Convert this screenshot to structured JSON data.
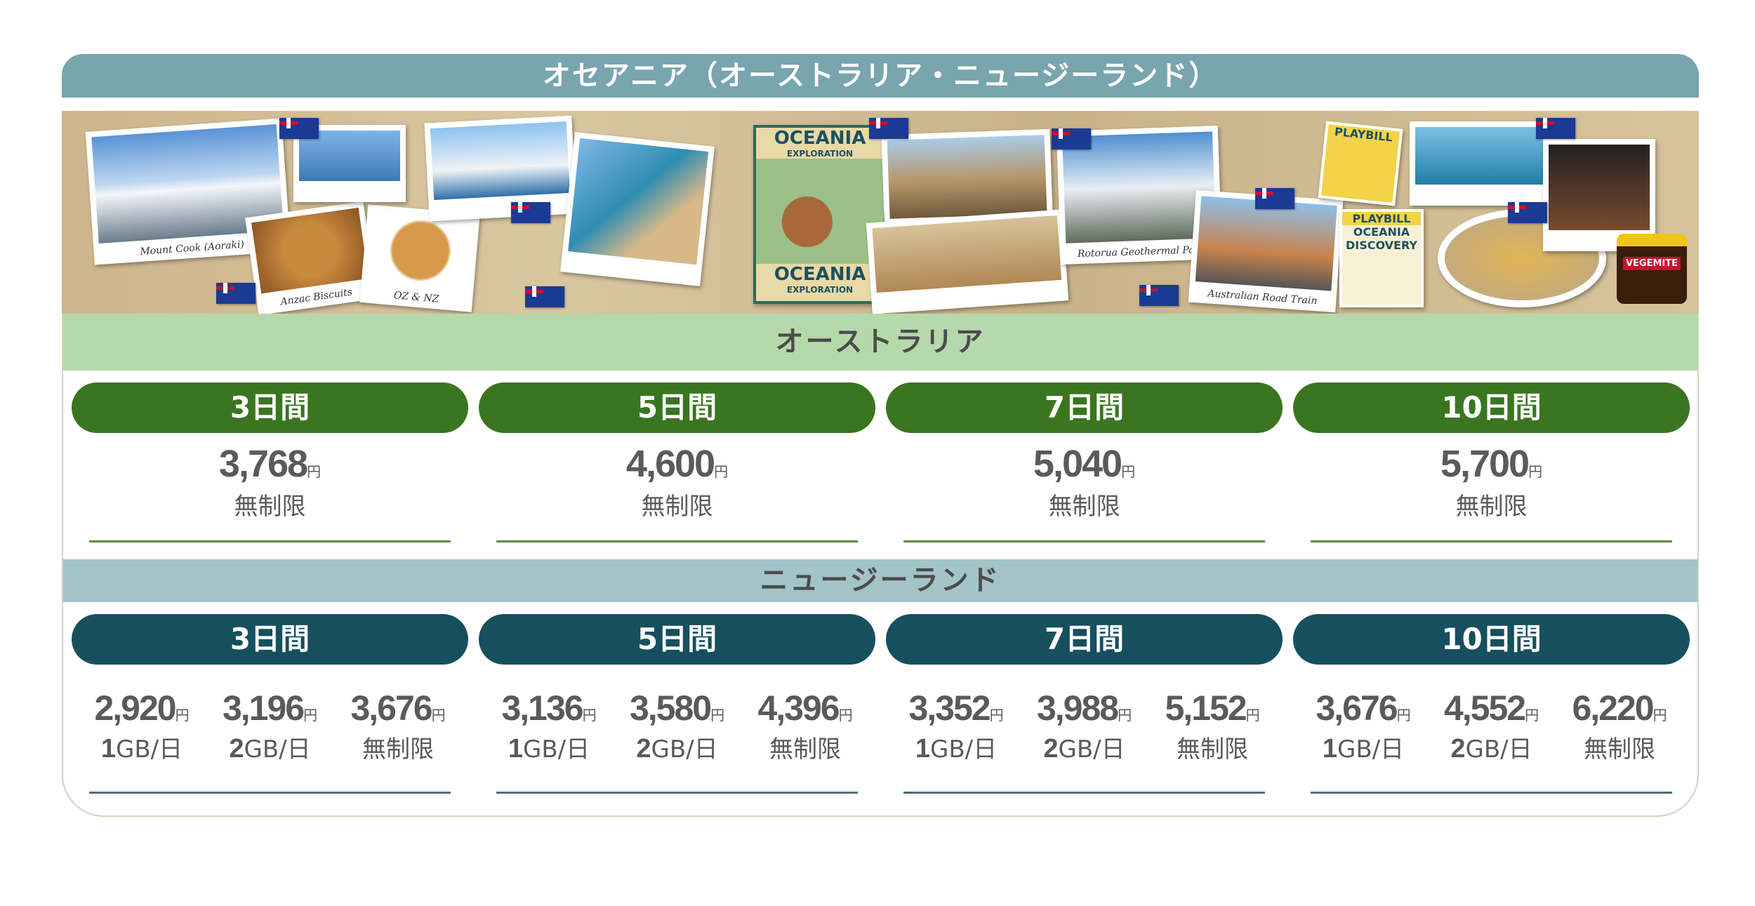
{
  "title": "オセアニア（オーストラリア・ニュージーランド）",
  "banner": {
    "captions": [
      "Mount Cook (Aoraki)",
      "Anzac Biscuits",
      "OZ & NZ",
      "Rotorua Geothermal Park",
      "Australian Road Train"
    ],
    "poster": {
      "top": "OCEANIA",
      "top_sub": "EXPLORATION",
      "bottom": "OCEANIA",
      "bottom_sub": "EXPLORATION"
    },
    "playbill1": "PLAYBILL",
    "playbill2": {
      "head": "PLAYBILL",
      "title": "OCEANIA DISCOVERY"
    },
    "vegemite": "VEGEMITE"
  },
  "currency": "円",
  "australia": {
    "heading": "オーストラリア",
    "color": "#3a7520",
    "plans": [
      {
        "days": "3日間",
        "price": "3,768",
        "label": "無制限"
      },
      {
        "days": "5日間",
        "price": "4,600",
        "label": "無制限"
      },
      {
        "days": "7日間",
        "price": "5,040",
        "label": "無制限"
      },
      {
        "days": "10日間",
        "price": "5,700",
        "label": "無制限"
      }
    ]
  },
  "new_zealand": {
    "heading": "ニュージーランド",
    "color": "#164f5e",
    "plans": [
      {
        "days": "3日間",
        "options": [
          {
            "price": "2,920",
            "num": "1",
            "unit": "GB/日"
          },
          {
            "price": "3,196",
            "num": "2",
            "unit": "GB/日"
          },
          {
            "price": "3,676",
            "num": "",
            "unit": "無制限"
          }
        ]
      },
      {
        "days": "5日間",
        "options": [
          {
            "price": "3,136",
            "num": "1",
            "unit": "GB/日"
          },
          {
            "price": "3,580",
            "num": "2",
            "unit": "GB/日"
          },
          {
            "price": "4,396",
            "num": "",
            "unit": "無制限"
          }
        ]
      },
      {
        "days": "7日間",
        "options": [
          {
            "price": "3,352",
            "num": "1",
            "unit": "GB/日"
          },
          {
            "price": "3,988",
            "num": "2",
            "unit": "GB/日"
          },
          {
            "price": "5,152",
            "num": "",
            "unit": "無制限"
          }
        ]
      },
      {
        "days": "10日間",
        "options": [
          {
            "price": "3,676",
            "num": "1",
            "unit": "GB/日"
          },
          {
            "price": "4,552",
            "num": "2",
            "unit": "GB/日"
          },
          {
            "price": "6,220",
            "num": "",
            "unit": "無制限"
          }
        ]
      }
    ]
  }
}
